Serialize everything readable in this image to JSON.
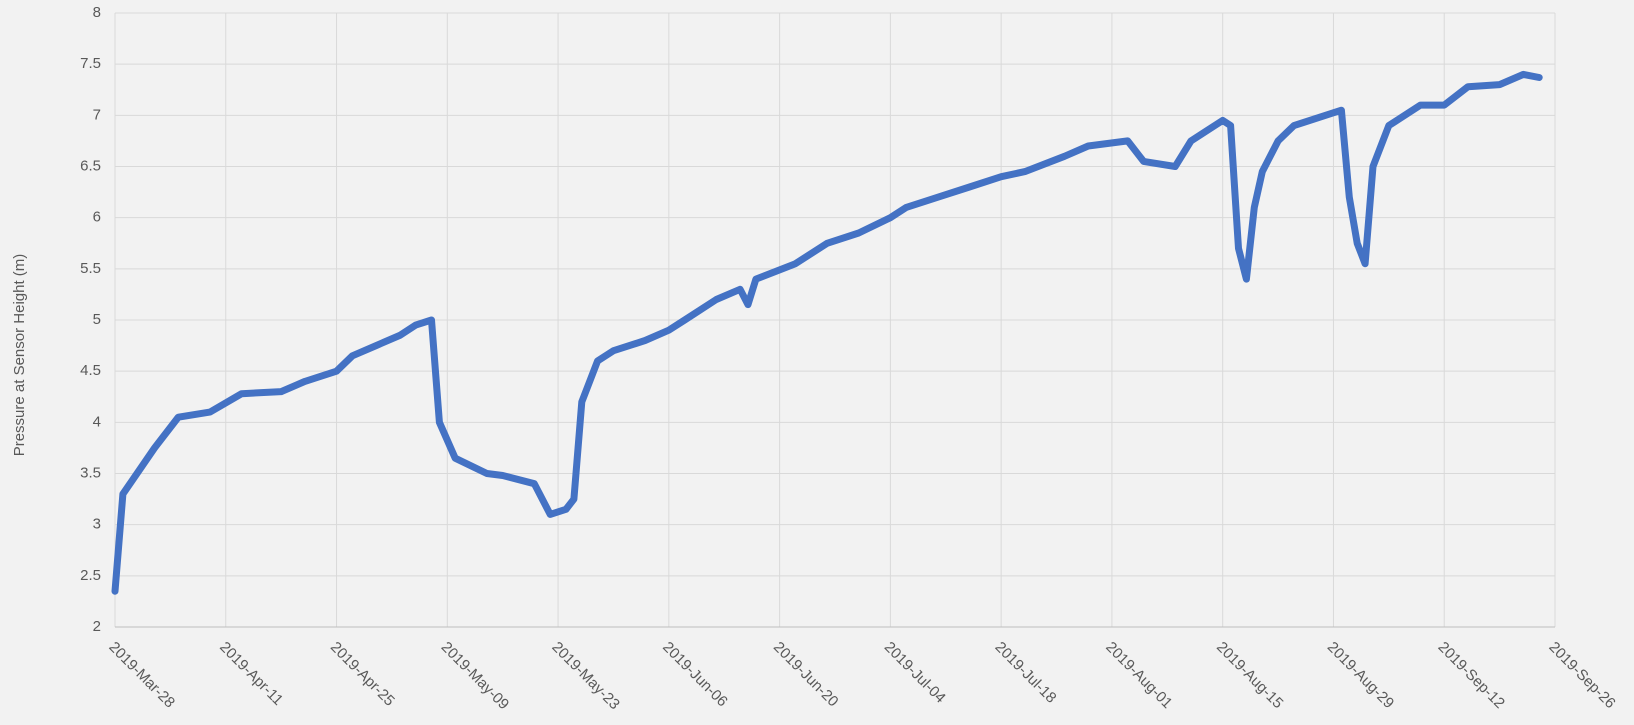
{
  "chart_data": {
    "type": "line",
    "y_label": "Pressure at Sensor Height (m)",
    "x": [
      "2019-03-28",
      "2019-03-29",
      "2019-04-02",
      "2019-04-05",
      "2019-04-09",
      "2019-04-13",
      "2019-04-18",
      "2019-04-21",
      "2019-04-25",
      "2019-04-27",
      "2019-04-30",
      "2019-05-03",
      "2019-05-05",
      "2019-05-07",
      "2019-05-08",
      "2019-05-10",
      "2019-05-14",
      "2019-05-16",
      "2019-05-20",
      "2019-05-22",
      "2019-05-24",
      "2019-05-25",
      "2019-05-26",
      "2019-05-28",
      "2019-05-30",
      "2019-06-03",
      "2019-06-06",
      "2019-06-08",
      "2019-06-12",
      "2019-06-15",
      "2019-06-16",
      "2019-06-17",
      "2019-06-22",
      "2019-06-26",
      "2019-06-30",
      "2019-07-04",
      "2019-07-06",
      "2019-07-10",
      "2019-07-14",
      "2019-07-18",
      "2019-07-21",
      "2019-07-26",
      "2019-07-29",
      "2019-08-03",
      "2019-08-05",
      "2019-08-09",
      "2019-08-11",
      "2019-08-15",
      "2019-08-16",
      "2019-08-17",
      "2019-08-18",
      "2019-08-19",
      "2019-08-20",
      "2019-08-22",
      "2019-08-24",
      "2019-08-30",
      "2019-08-31",
      "2019-09-01",
      "2019-09-02",
      "2019-09-03",
      "2019-09-05",
      "2019-09-09",
      "2019-09-12",
      "2019-09-15",
      "2019-09-19",
      "2019-09-22",
      "2019-09-24"
    ],
    "series": [
      {
        "name": "Pressure",
        "color": "#4472c4",
        "values": [
          2.35,
          3.3,
          3.75,
          4.05,
          4.1,
          4.28,
          4.3,
          4.4,
          4.5,
          4.65,
          4.75,
          4.85,
          4.95,
          5.0,
          4.0,
          3.65,
          3.5,
          3.48,
          3.4,
          3.1,
          3.15,
          3.25,
          4.2,
          4.6,
          4.7,
          4.8,
          4.9,
          5.0,
          5.2,
          5.3,
          5.15,
          5.4,
          5.55,
          5.75,
          5.85,
          6.0,
          6.1,
          6.2,
          6.3,
          6.4,
          6.45,
          6.6,
          6.7,
          6.75,
          6.55,
          6.5,
          6.75,
          6.95,
          6.9,
          5.7,
          5.4,
          6.1,
          6.45,
          6.75,
          6.9,
          7.05,
          6.2,
          5.75,
          5.55,
          6.5,
          6.9,
          7.1,
          7.1,
          7.28,
          7.3,
          7.4,
          7.37
        ]
      }
    ],
    "xlim": [
      "2019-03-28",
      "2019-09-26"
    ],
    "xticks": [
      {
        "value": "2019-03-28",
        "label": "2019-Mar-28"
      },
      {
        "value": "2019-04-11",
        "label": "2019-Apr-11"
      },
      {
        "value": "2019-04-25",
        "label": "2019-Apr-25"
      },
      {
        "value": "2019-05-09",
        "label": "2019-May-09"
      },
      {
        "value": "2019-05-23",
        "label": "2019-May-23"
      },
      {
        "value": "2019-06-06",
        "label": "2019-Jun-06"
      },
      {
        "value": "2019-06-20",
        "label": "2019-Jun-20"
      },
      {
        "value": "2019-07-04",
        "label": "2019-Jul-04"
      },
      {
        "value": "2019-07-18",
        "label": "2019-Jul-18"
      },
      {
        "value": "2019-08-01",
        "label": "2019-Aug-01"
      },
      {
        "value": "2019-08-15",
        "label": "2019-Aug-15"
      },
      {
        "value": "2019-08-29",
        "label": "2019-Aug-29"
      },
      {
        "value": "2019-09-12",
        "label": "2019-Sep-12"
      },
      {
        "value": "2019-09-26",
        "label": "2019-Sep-26"
      }
    ],
    "ylim": [
      2,
      8
    ],
    "yticks": [
      2,
      2.5,
      3,
      3.5,
      4,
      4.5,
      5,
      5.5,
      6,
      6.5,
      7,
      7.5,
      8
    ],
    "grid": true
  }
}
